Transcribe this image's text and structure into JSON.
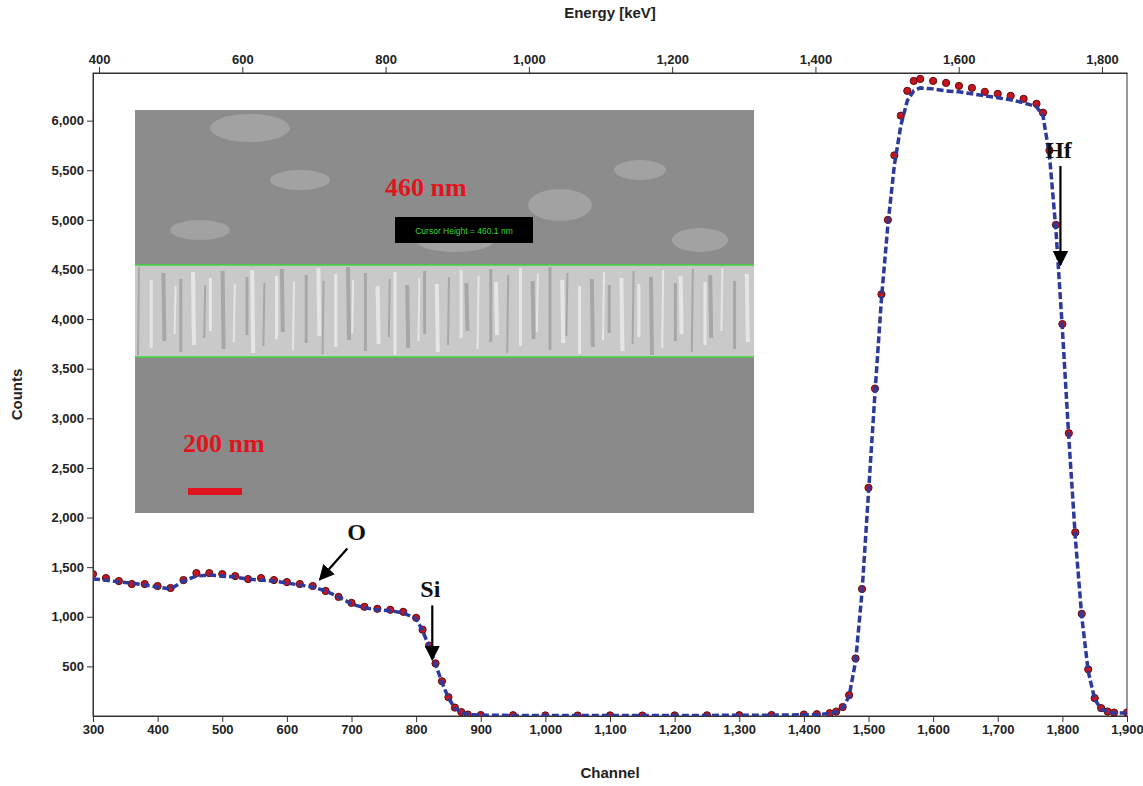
{
  "chart_data": {
    "type": "scatter",
    "x_label": "Channel",
    "y_label": "Counts",
    "x2_label": "Energy [keV]",
    "xlim": [
      300,
      1900
    ],
    "xticks": [
      300,
      400,
      500,
      600,
      700,
      800,
      900,
      {
        "value": 1000,
        "label": "1,000"
      },
      {
        "value": 1100,
        "label": "1,100"
      },
      {
        "value": 1200,
        "label": "1,200"
      },
      {
        "value": 1300,
        "label": "1,300"
      },
      {
        "value": 1400,
        "label": "1,400"
      },
      {
        "value": 1500,
        "label": "1,500"
      },
      {
        "value": 1600,
        "label": "1,600"
      },
      {
        "value": 1700,
        "label": "1,700"
      },
      {
        "value": 1800,
        "label": "1,800"
      },
      {
        "value": 1900,
        "label": "1,900"
      }
    ],
    "x2lim": [
      391.6,
      1834.9
    ],
    "x2ticks": [
      400,
      600,
      800,
      {
        "value": 1000,
        "label": "1,000"
      },
      {
        "value": 1200,
        "label": "1,200"
      },
      {
        "value": 1400,
        "label": "1,400"
      },
      {
        "value": 1600,
        "label": "1,600"
      },
      {
        "value": 1800,
        "label": "1,800"
      }
    ],
    "ylim": [
      0,
      6480
    ],
    "yticks": [
      500,
      {
        "value": 1000,
        "label": "1,000"
      },
      {
        "value": 1500,
        "label": "1,500"
      },
      {
        "value": 2000,
        "label": "2,000"
      },
      {
        "value": 2500,
        "label": "2,500"
      },
      {
        "value": 3000,
        "label": "3,000"
      },
      {
        "value": 3500,
        "label": "3,500"
      },
      {
        "value": 4000,
        "label": "4,000"
      },
      {
        "value": 4500,
        "label": "4,500"
      },
      {
        "value": 5000,
        "label": "5,000"
      },
      {
        "value": 5500,
        "label": "5,500"
      },
      {
        "value": 6000,
        "label": "6,000"
      }
    ],
    "grid": false,
    "x": [
      300,
      320,
      340,
      360,
      380,
      400,
      420,
      440,
      460,
      480,
      500,
      520,
      540,
      560,
      580,
      600,
      620,
      640,
      660,
      680,
      700,
      720,
      740,
      760,
      780,
      800,
      810,
      820,
      830,
      840,
      850,
      860,
      870,
      880,
      900,
      950,
      1000,
      1050,
      1100,
      1150,
      1200,
      1250,
      1300,
      1350,
      1400,
      1420,
      1440,
      1450,
      1460,
      1470,
      1480,
      1490,
      1500,
      1510,
      1520,
      1530,
      1540,
      1550,
      1560,
      1570,
      1580,
      1600,
      1620,
      1640,
      1660,
      1680,
      1700,
      1720,
      1740,
      1760,
      1770,
      1780,
      1790,
      1800,
      1810,
      1820,
      1830,
      1840,
      1850,
      1860,
      1870,
      1880,
      1900
    ],
    "series": [
      {
        "type": "scatter",
        "color": "#c8141e",
        "marker": "circle",
        "values": [
          1430,
          1390,
          1360,
          1330,
          1330,
          1310,
          1290,
          1370,
          1440,
          1440,
          1430,
          1410,
          1380,
          1390,
          1370,
          1350,
          1330,
          1310,
          1260,
          1200,
          1140,
          1100,
          1080,
          1070,
          1050,
          990,
          870,
          710,
          530,
          350,
          190,
          85,
          40,
          15,
          10,
          8,
          6,
          5,
          6,
          5,
          6,
          7,
          8,
          10,
          15,
          18,
          28,
          45,
          90,
          210,
          580,
          1280,
          2300,
          3300,
          4250,
          5000,
          5650,
          6050,
          6300,
          6400,
          6420,
          6400,
          6380,
          6350,
          6330,
          6290,
          6270,
          6250,
          6220,
          6170,
          6080,
          5700,
          4950,
          3950,
          2850,
          1850,
          1030,
          470,
          180,
          80,
          45,
          35,
          35
        ]
      },
      {
        "type": "line",
        "color": "#2b3a9c",
        "line_style": "dashed",
        "values": [
          1380,
          1370,
          1350,
          1340,
          1320,
          1300,
          1280,
          1360,
          1410,
          1420,
          1410,
          1400,
          1380,
          1370,
          1360,
          1340,
          1320,
          1300,
          1260,
          1200,
          1130,
          1090,
          1070,
          1060,
          1040,
          980,
          860,
          700,
          520,
          340,
          180,
          80,
          35,
          15,
          8,
          6,
          5,
          5,
          5,
          5,
          5,
          6,
          7,
          8,
          12,
          15,
          25,
          40,
          80,
          200,
          550,
          1250,
          2250,
          3250,
          4200,
          4950,
          5550,
          5950,
          6200,
          6300,
          6330,
          6320,
          6300,
          6290,
          6270,
          6250,
          6230,
          6210,
          6180,
          6140,
          6050,
          5650,
          4900,
          3900,
          2800,
          1800,
          1000,
          450,
          170,
          70,
          40,
          30,
          30
        ]
      }
    ],
    "annotations": [
      {
        "text": "O",
        "x": 651,
        "y": 1375,
        "text_x": 708,
        "text_y": 1769
      },
      {
        "text": "Si",
        "x": 825,
        "y": 570,
        "text_x": 822,
        "text_y": 1195
      },
      {
        "text": "Hf",
        "x": 1797,
        "y": 4546,
        "text_x": 1794,
        "text_y": 5624
      }
    ],
    "inset": {
      "label": "460 nm",
      "cursor_text": "Cursor Height = 460.1 nm",
      "scale_bar": "200 nm"
    }
  }
}
